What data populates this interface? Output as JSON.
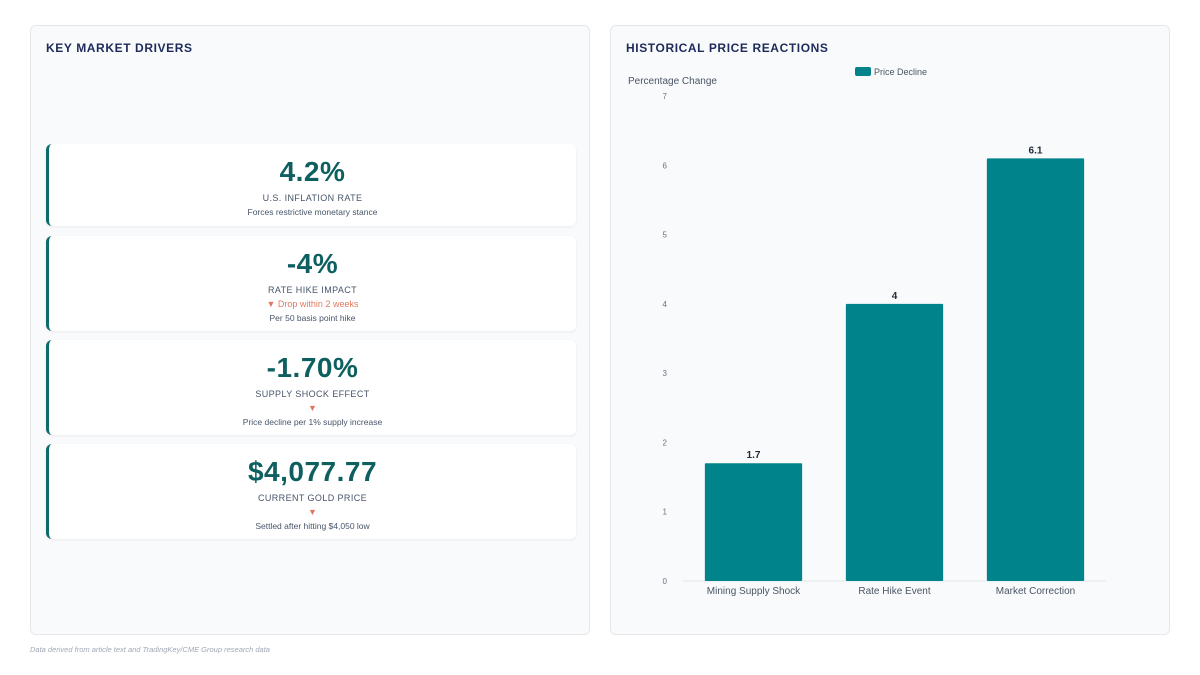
{
  "left_panel": {
    "title": "KEY MARKET DRIVERS",
    "kpis": [
      {
        "value": "4.2%",
        "label": "U.S. INFLATION RATE",
        "trend": "",
        "description": "Forces restrictive monetary stance"
      },
      {
        "value": "-4%",
        "label": "RATE HIKE IMPACT",
        "trend": "▼ Drop within 2 weeks",
        "description": "Per 50 basis point hike"
      },
      {
        "value": "-1.70%",
        "label": "SUPPLY SHOCK EFFECT",
        "trend": "▼",
        "description": "Price decline per 1% supply increase"
      },
      {
        "value": "$4,077.77",
        "label": "CURRENT GOLD PRICE",
        "trend": "▼",
        "description": "Settled after hitting $4,050 low"
      }
    ]
  },
  "right_panel": {
    "title": "HISTORICAL PRICE REACTIONS"
  },
  "chart_data": {
    "type": "bar",
    "categories": [
      "Mining Supply Shock",
      "Rate Hike Event",
      "Market Correction"
    ],
    "series": [
      {
        "name": "Price Decline",
        "values": [
          1.7,
          4,
          6.1
        ],
        "color": "#00838a"
      }
    ],
    "ylabel": "Percentage Change",
    "xlabel": "",
    "ylim": [
      0,
      7
    ],
    "yticks": [
      0,
      1,
      2,
      3,
      4,
      5,
      6,
      7
    ],
    "data_labels": [
      "1.7",
      "4",
      "6.1"
    ],
    "grid": false,
    "legend_position": "top"
  },
  "footnote": "Data derived from article text and TradingKey/CME Group research data"
}
